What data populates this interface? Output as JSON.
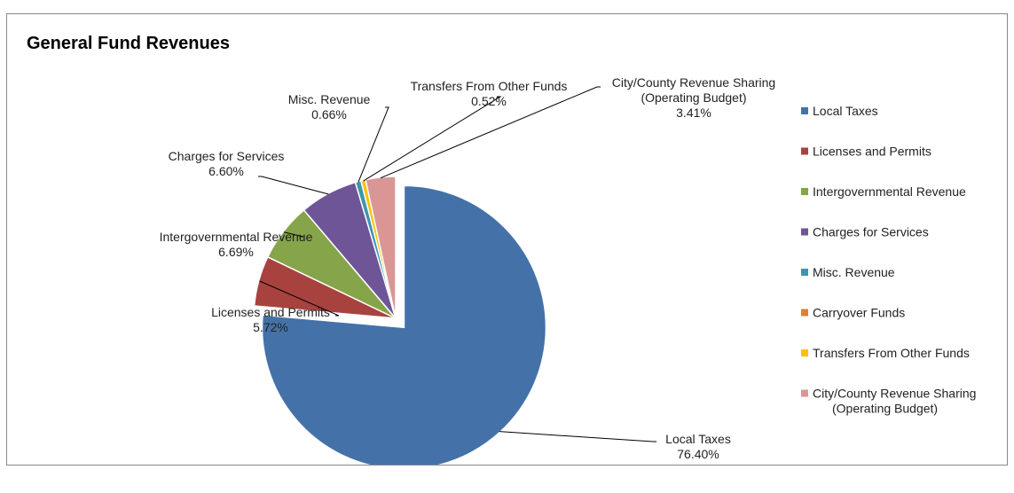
{
  "chart_data": {
    "type": "pie",
    "title": "General Fund Revenues",
    "categories": [
      "Local Taxes",
      "Licenses and Permits",
      "Intergovernmental Revenue",
      "Charges for Services",
      "Misc. Revenue",
      "Carryover Funds",
      "Transfers From Other Funds",
      "City/County Revenue Sharing (Operating Budget)"
    ],
    "values": [
      76.4,
      5.72,
      6.69,
      6.6,
      0.66,
      0.0,
      0.52,
      3.41
    ],
    "data_labels": [
      [
        "Local Taxes",
        "76.40%"
      ],
      [
        "Licenses and Permits",
        "5.72%"
      ],
      [
        "Intergovernmental Revenue",
        "6.69%"
      ],
      [
        "Charges for Services",
        "6.60%"
      ],
      [
        "Misc. Revenue",
        "0.66%"
      ],
      null,
      [
        "Transfers From Other Funds",
        "0.52%"
      ],
      [
        "City/County Revenue Sharing",
        "(Operating Budget)",
        "3.41%"
      ]
    ],
    "legend_entries": [
      [
        "Local Taxes"
      ],
      [
        "Licenses and Permits"
      ],
      [
        "Intergovernmental Revenue"
      ],
      [
        "Charges for Services"
      ],
      [
        "Misc. Revenue"
      ],
      [
        "Carryover Funds"
      ],
      [
        "Transfers From Other Funds"
      ],
      [
        "City/County Revenue Sharing",
        "(Operating Budget)"
      ]
    ],
    "colors": [
      "#4472A8",
      "#A8423F",
      "#86A44A",
      "#6E5597",
      "#3D96AE",
      "#DA8137",
      "#FFC000",
      "#D99694"
    ],
    "exploded_slice": "Local Taxes",
    "legend_position": "right"
  }
}
